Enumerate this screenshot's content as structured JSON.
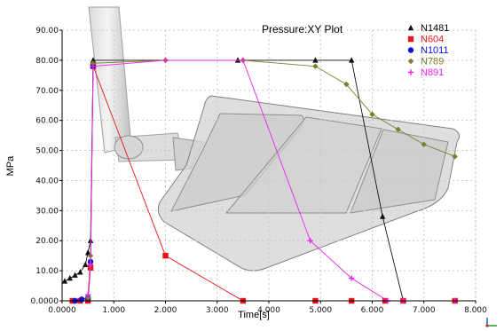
{
  "chart_data": {
    "type": "line",
    "title": "Pressure:XY Plot",
    "xlabel": "Time[s]",
    "ylabel": "MPa",
    "xlim": [
      0,
      8
    ],
    "ylim": [
      0,
      90
    ],
    "x_ticks": [
      "0.0000",
      "1.000",
      "2.000",
      "3.000",
      "4.000",
      "5.000",
      "6.000",
      "7.000",
      "8.000"
    ],
    "y_ticks": [
      "0.0000",
      "10.00",
      "20.00",
      "30.00",
      "40.00",
      "50.00",
      "60.00",
      "70.00",
      "80.00",
      "90.00"
    ],
    "legend_position": "top-right",
    "series": [
      {
        "name": "N1481",
        "color": "#111111",
        "marker": "triangle",
        "x": [
          0.05,
          0.15,
          0.25,
          0.35,
          0.45,
          0.5,
          0.55,
          0.6,
          3.4,
          4.9,
          5.6,
          6.2,
          6.6
        ],
        "y": [
          6.5,
          7.5,
          8.5,
          9.5,
          12,
          16,
          20,
          80,
          80,
          80,
          80,
          28,
          0
        ]
      },
      {
        "name": "N604",
        "color": "#e8141c",
        "marker": "square",
        "x": [
          0.2,
          0.35,
          0.5,
          0.55,
          0.6,
          2.0,
          3.5,
          4.9,
          5.6,
          6.25,
          6.6,
          7.6
        ],
        "y": [
          0,
          0,
          0,
          11,
          78,
          15,
          0,
          0,
          0,
          0,
          0,
          0
        ]
      },
      {
        "name": "N1011",
        "color": "#1010d8",
        "marker": "circle",
        "x": [
          0.25,
          0.38,
          0.5,
          0.55,
          0.6
        ],
        "y": [
          0,
          0.5,
          1,
          13,
          78
        ]
      },
      {
        "name": "N789",
        "color": "#7d7d2a",
        "marker": "diamond",
        "x": [
          0.5,
          0.55,
          0.6,
          2.0,
          3.5,
          4.9,
          5.5,
          6.0,
          6.5,
          7.0,
          7.6
        ],
        "y": [
          1,
          15,
          79,
          80,
          80,
          78,
          72,
          62,
          57,
          52,
          48
        ]
      },
      {
        "name": "N891",
        "color": "#ee22ee",
        "marker": "plus",
        "x": [
          0.5,
          0.55,
          0.6,
          2.0,
          3.5,
          4.8,
          5.6,
          6.3,
          6.6,
          7.6
        ],
        "y": [
          2,
          12,
          78,
          80,
          80,
          20,
          7.5,
          0,
          0,
          0
        ]
      }
    ]
  }
}
